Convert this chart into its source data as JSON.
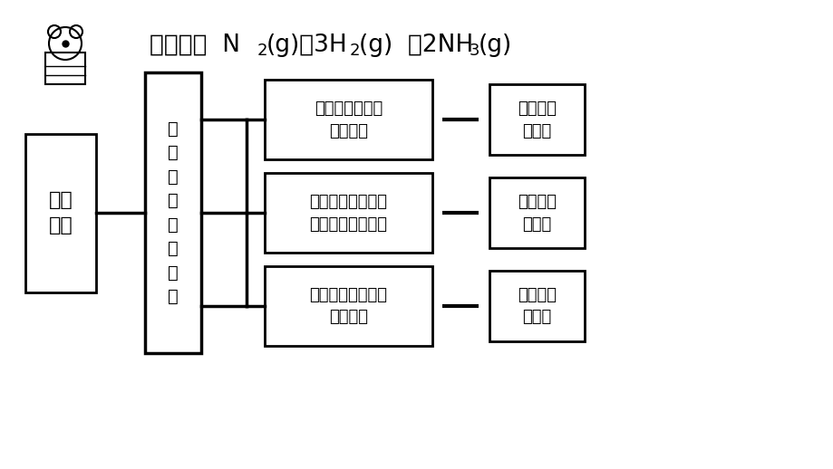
{
  "bg_color": "#ffffff",
  "box1_text": "工艺\n流程",
  "box2_text": "适\n宜\n的\n合\n成\n氨\n条\n件",
  "mid_boxes": [
    "合成氨反应能否\n自发进行",
    "怎样能使化学平衡\n向合成氨方向移动",
    "怎样能提高合成氨\n反应速率"
  ],
  "right_boxes": [
    "化学反应\n的方向",
    "化学反应\n的限度",
    "化学反应\n的速率"
  ],
  "title_parts": [
    "工艺流程  N",
    "2",
    "(g)＋3H",
    "2",
    "(g)  葔2NH",
    "3",
    "(g)"
  ]
}
